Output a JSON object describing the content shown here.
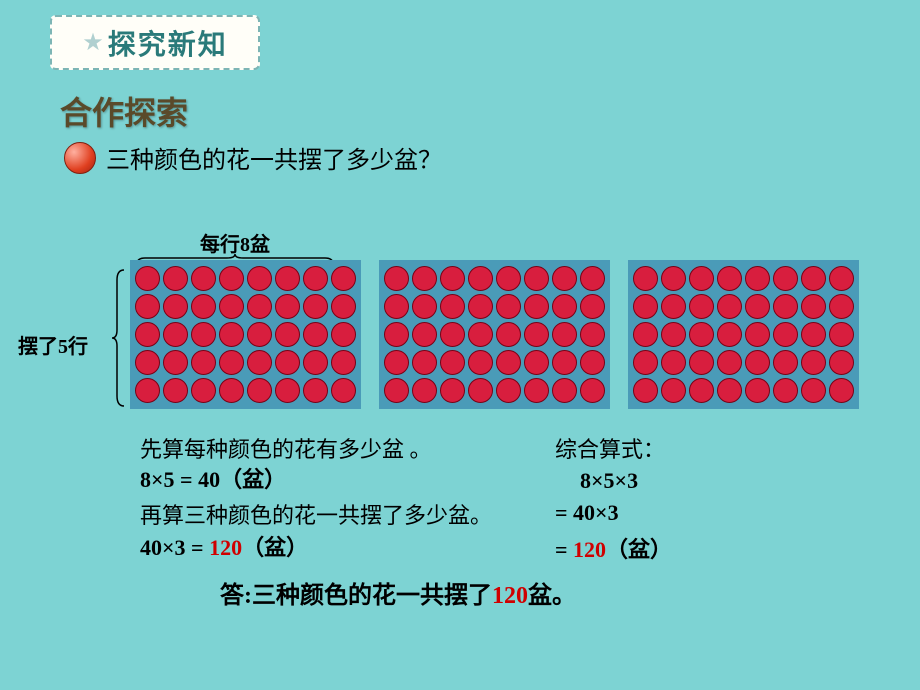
{
  "banner": {
    "text": "探究新知",
    "star_color": "#b0d0d0",
    "text_color": "#2a7a7a",
    "bg_color": "#fffef8",
    "border_color": "#7db5b5"
  },
  "subtitle": "合作探索",
  "question": "三种颜色的花一共摆了多少盆？",
  "col_label": "每行8盆",
  "row_label": "摆了5行",
  "grid": {
    "groups": 3,
    "rows": 5,
    "cols": 8,
    "panel_bg": "#4a9bb8",
    "dot_color": "#d81e3e",
    "dot_border": "#7a0015"
  },
  "calc": {
    "step1_label": "先算每种颜色的花有多少盆 。",
    "step1_eq_a": "8×5 = ",
    "step1_eq_b": "40",
    "step1_eq_c": "（盆）",
    "step2_label": "再算三种颜色的花一共摆了多少盆。",
    "step2_eq_a": "40×3 = ",
    "step2_eq_b": "120",
    "step2_eq_c": "（盆）"
  },
  "combined": {
    "label": "综合算式：",
    "line1": "8×5×3",
    "line2": "= 40×3",
    "line3a": "= ",
    "line3b": "120",
    "line3c": "（盆）"
  },
  "answer": {
    "a": "答:三种颜色的花一共摆了",
    "b": "120",
    "c": "盆。"
  },
  "colors": {
    "page_bg": "#7dd3d3",
    "highlight": "#d00000"
  }
}
